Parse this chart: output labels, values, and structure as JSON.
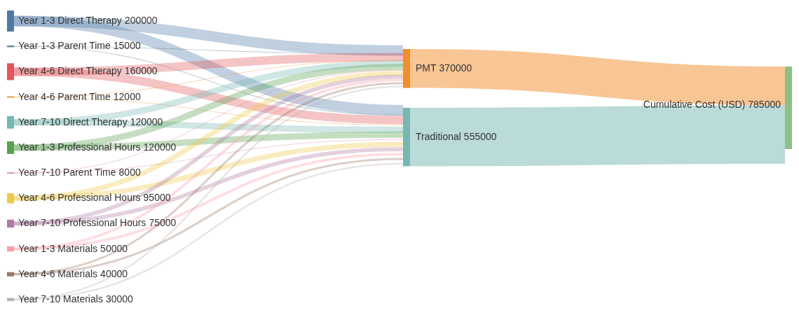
{
  "chart_data": {
    "type": "other",
    "categories": [
      "Year 1-3 Direct Therapy",
      "Year 1-3 Parent Time",
      "Year 4-6 Direct Therapy",
      "Year 4-6 Parent Time",
      "Year 7-10 Direct Therapy",
      "Year 1-3 Professional Hours",
      "Year 7-10 Parent Time",
      "Year 4-6 Professional Hours",
      "Year 7-10 Professional Hours",
      "Year 1-3 Materials",
      "Year 4-6 Materials",
      "Year 7-10 Materials",
      "PMT",
      "Traditional",
      "Cumulative Cost (USD)"
    ],
    "values": [
      200000,
      15000,
      160000,
      12000,
      120000,
      120000,
      8000,
      95000,
      75000,
      50000,
      40000,
      30000,
      370000,
      555000,
      785000
    ],
    "data_labels": true,
    "colors": [
      "#4e79a7",
      "#5f7f8f",
      "#e15759",
      "#f28e2b",
      "#76b7b2",
      "#59a14f",
      "#d37295",
      "#edc948",
      "#b07aa1",
      "#ff9da7",
      "#9c755f",
      "#bab0ac",
      "#f28e2b",
      "#76b7b2",
      "#8cc084"
    ]
  }
}
